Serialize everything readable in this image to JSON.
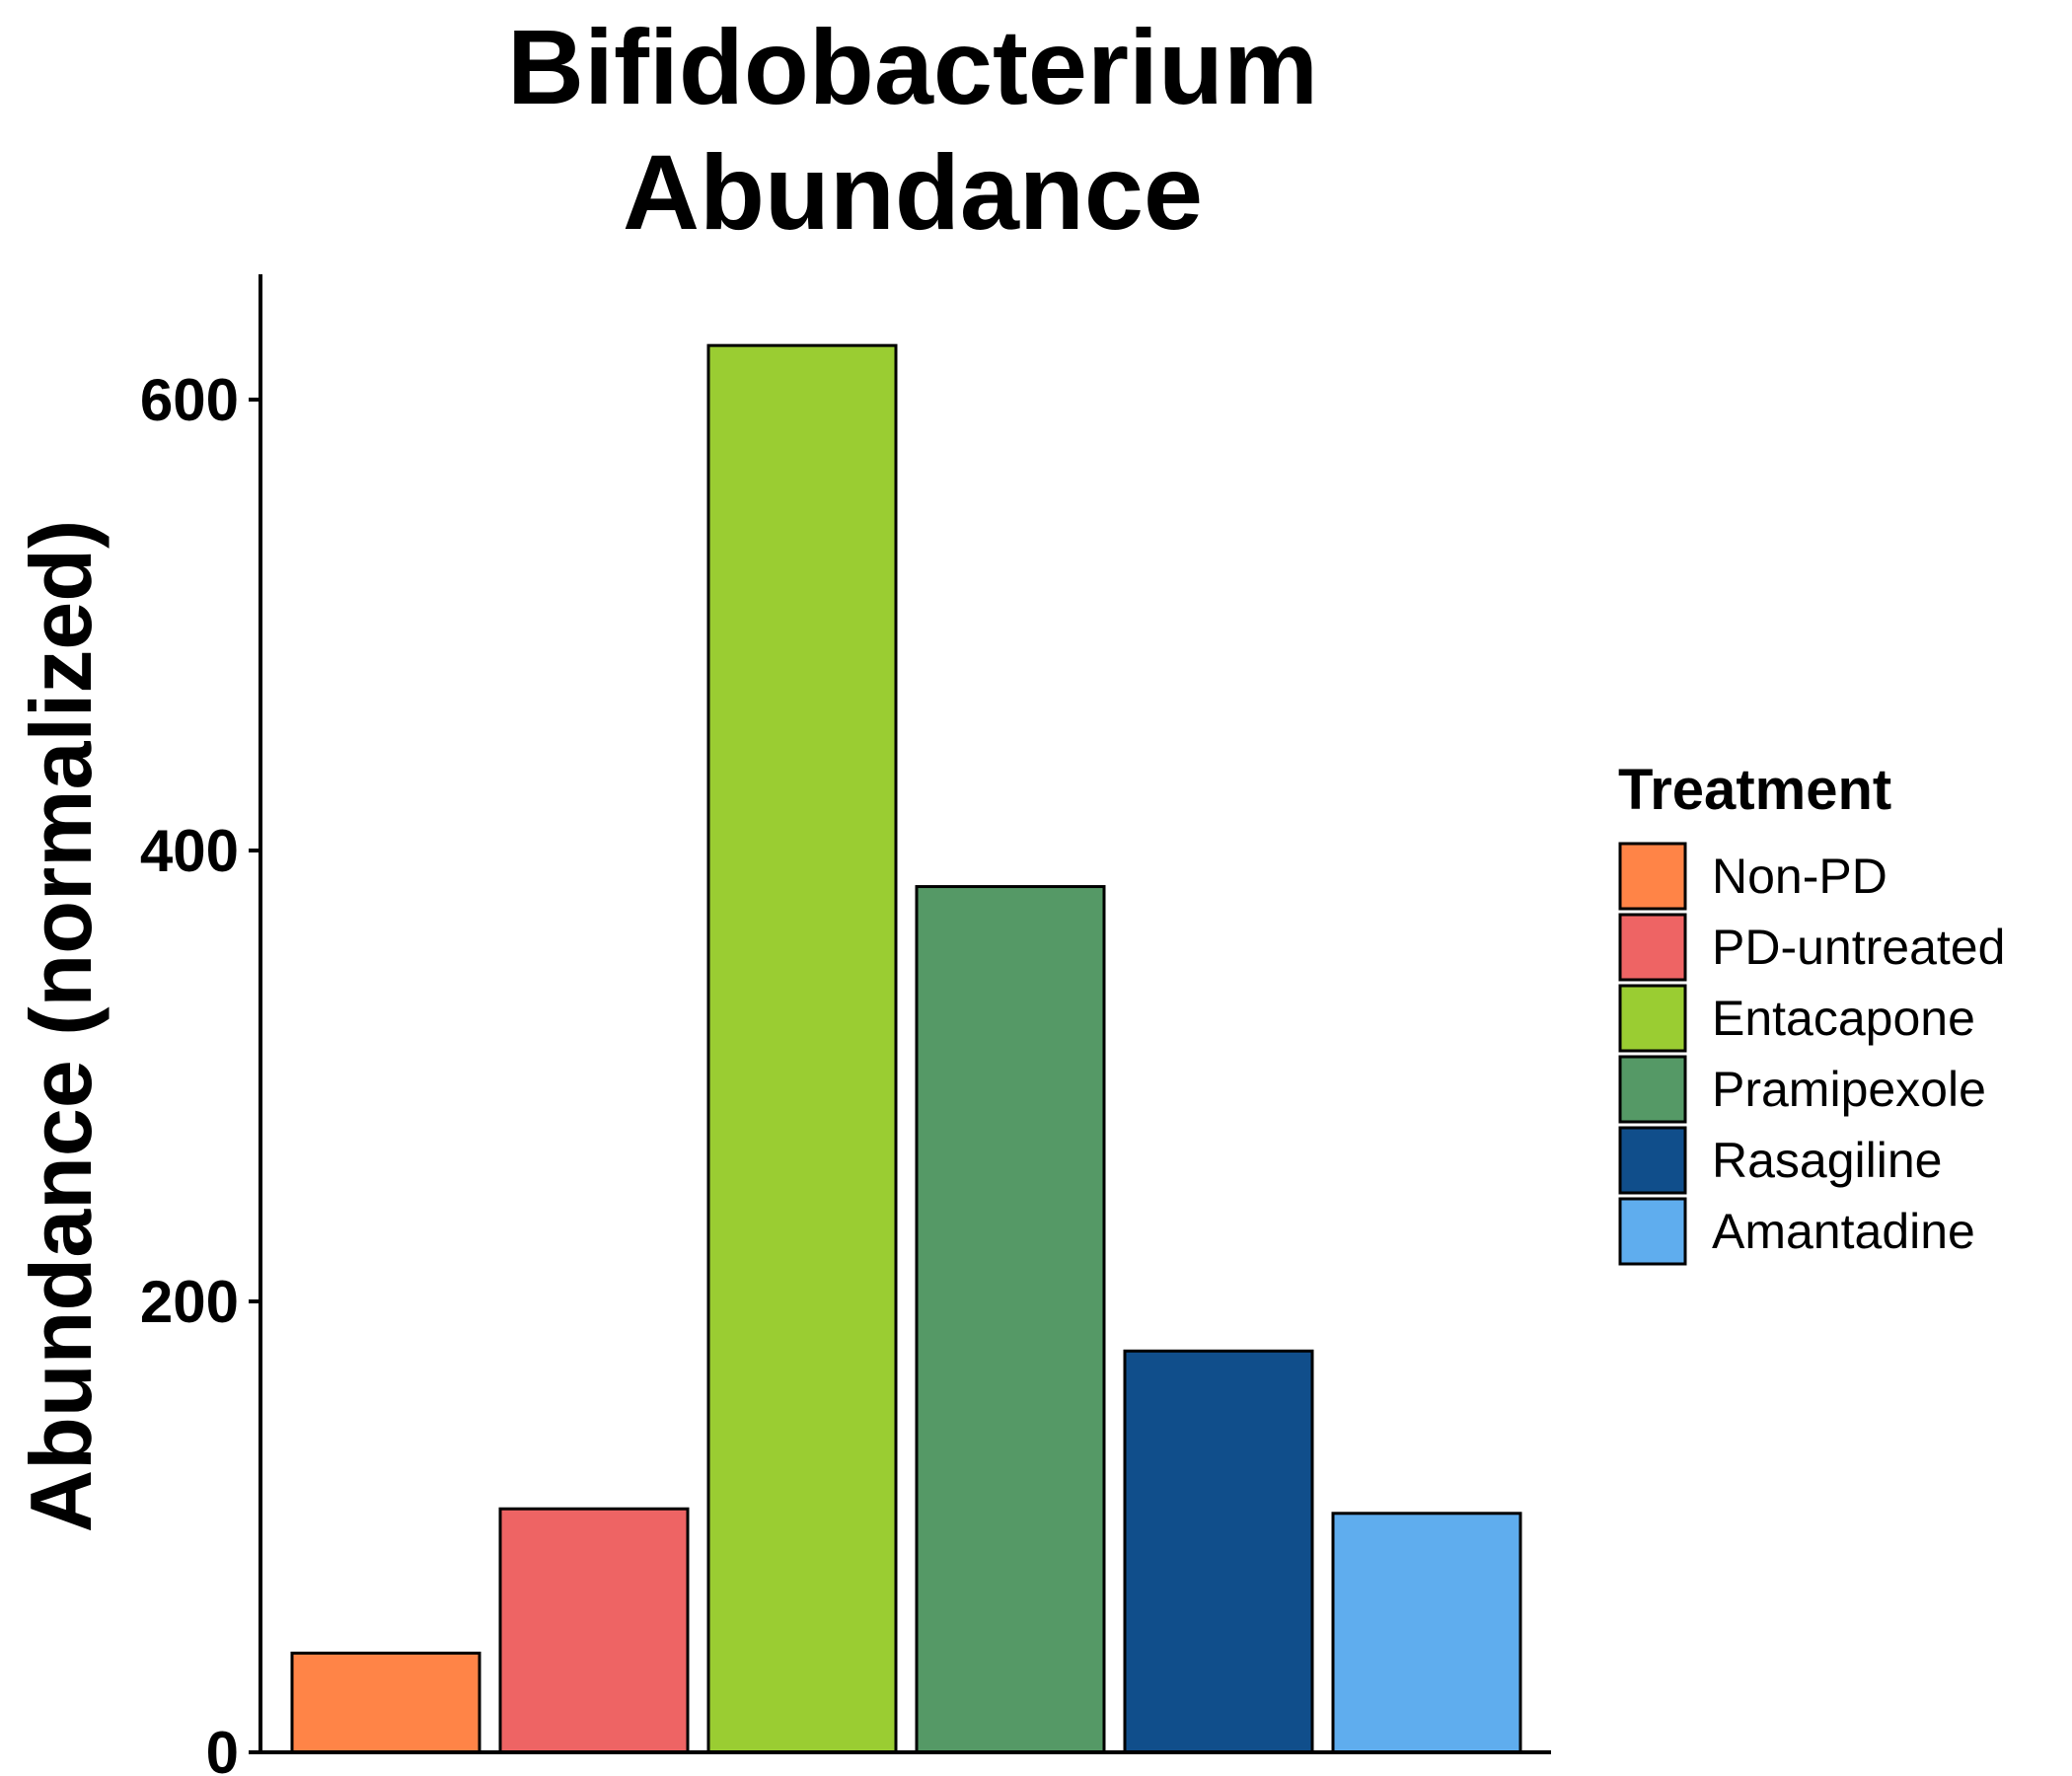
{
  "chart_data": {
    "type": "bar",
    "title": [
      "Bifidobacterium",
      "Abundance"
    ],
    "xlabel": "",
    "ylabel": "Abundance (normalized)",
    "ylim": [
      0,
      660
    ],
    "yticks": [
      0,
      200,
      400,
      600
    ],
    "categories": [
      "Non-PD",
      "PD-untreated",
      "Entacapone",
      "Pramipexole",
      "Rasagiline",
      "Amantadine"
    ],
    "values": [
      44,
      108,
      624,
      384,
      178,
      106
    ],
    "colors": [
      "#FF8447",
      "#EE6464",
      "#9ACD32",
      "#559966",
      "#104E8B",
      "#5FADEE"
    ],
    "legend": {
      "title": "Treatment",
      "placement": "right",
      "items": [
        "Non-PD",
        "PD-untreated",
        "Entacapone",
        "Pramipexole",
        "Rasagiline",
        "Amantadine"
      ]
    },
    "grid": false
  }
}
